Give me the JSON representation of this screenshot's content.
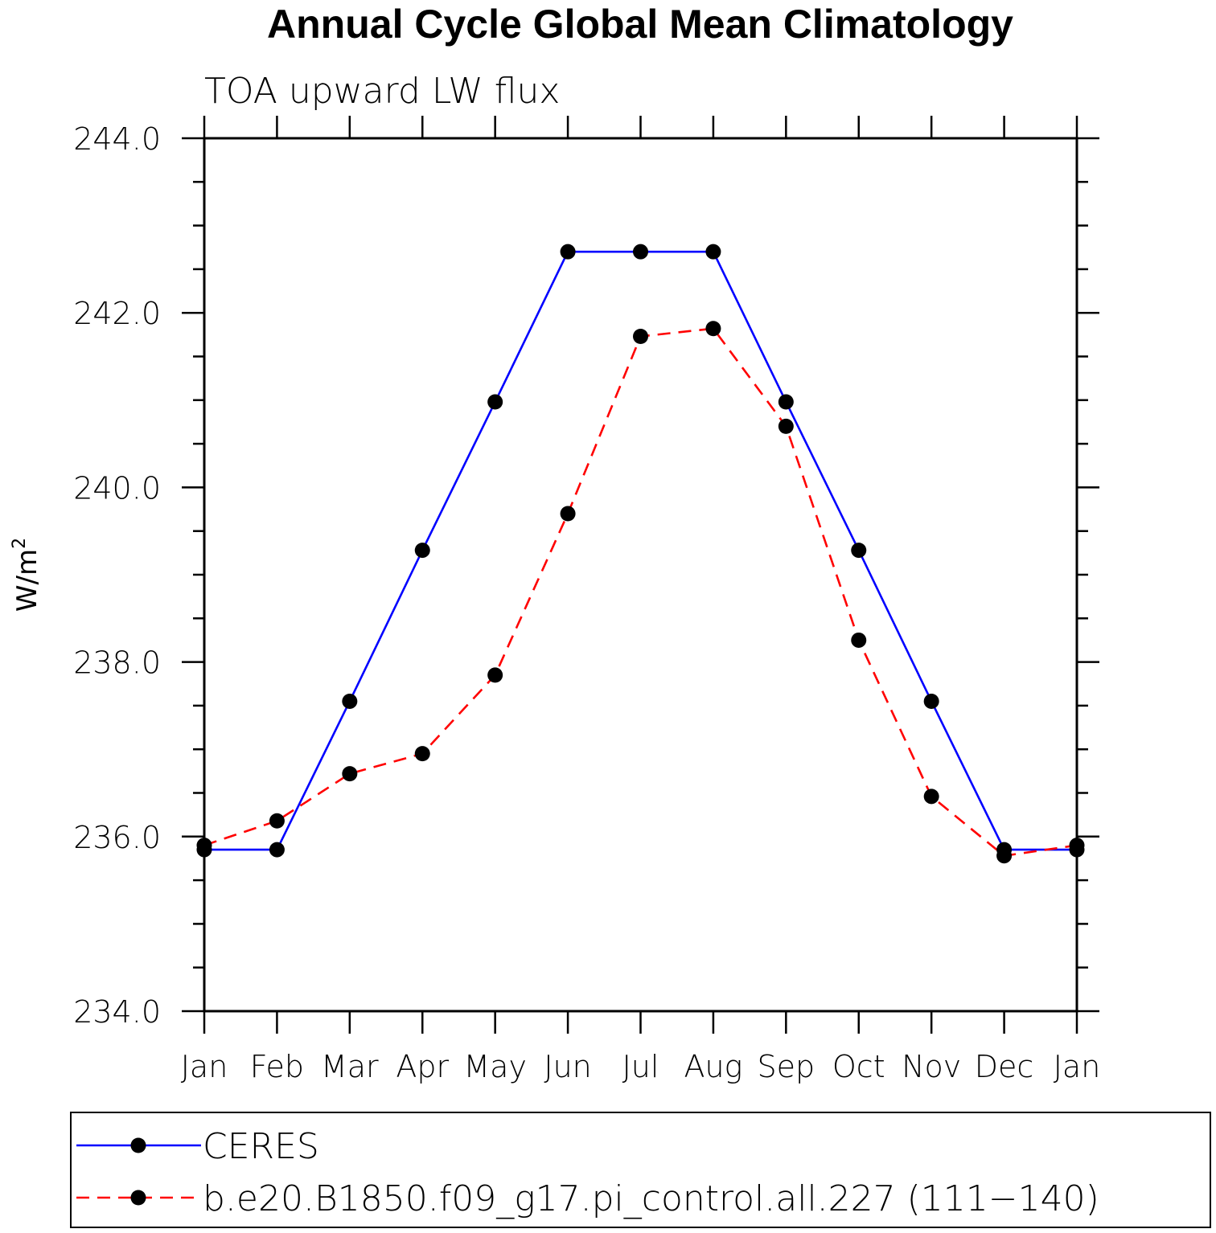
{
  "chart_data": {
    "type": "line",
    "title": "Annual Cycle Global Mean Climatology",
    "subtitle": "TOA upward LW flux",
    "xlabel": "",
    "ylabel": "W/m",
    "ylabel_superscript": "2",
    "ylim": [
      234.0,
      244.0
    ],
    "yticks": [
      "234.0",
      "236.0",
      "238.0",
      "240.0",
      "242.0",
      "244.0"
    ],
    "yticks_values": [
      234.0,
      236.0,
      238.0,
      240.0,
      242.0,
      244.0
    ],
    "categories": [
      "Jan",
      "Feb",
      "Mar",
      "Apr",
      "May",
      "Jun",
      "Jul",
      "Aug",
      "Sep",
      "Oct",
      "Nov",
      "Dec",
      "Jan"
    ],
    "grid": false,
    "legend_position": "bottom",
    "series": [
      {
        "name": "CERES",
        "color": "#0000ff",
        "line_style": "solid",
        "marker": "filled-circle",
        "values": [
          235.85,
          235.85,
          237.55,
          239.28,
          240.98,
          242.7,
          242.7,
          242.7,
          240.98,
          239.28,
          237.55,
          235.85,
          235.85
        ]
      },
      {
        "name": "b.e20.B1850.f09_g17.pi_control.all.227 (111−140)",
        "color": "#ff0000",
        "line_style": "dashed",
        "marker": "filled-circle",
        "values": [
          235.9,
          236.18,
          236.72,
          236.95,
          237.85,
          239.7,
          241.73,
          241.82,
          240.7,
          238.25,
          236.46,
          235.78,
          235.9
        ]
      }
    ]
  }
}
